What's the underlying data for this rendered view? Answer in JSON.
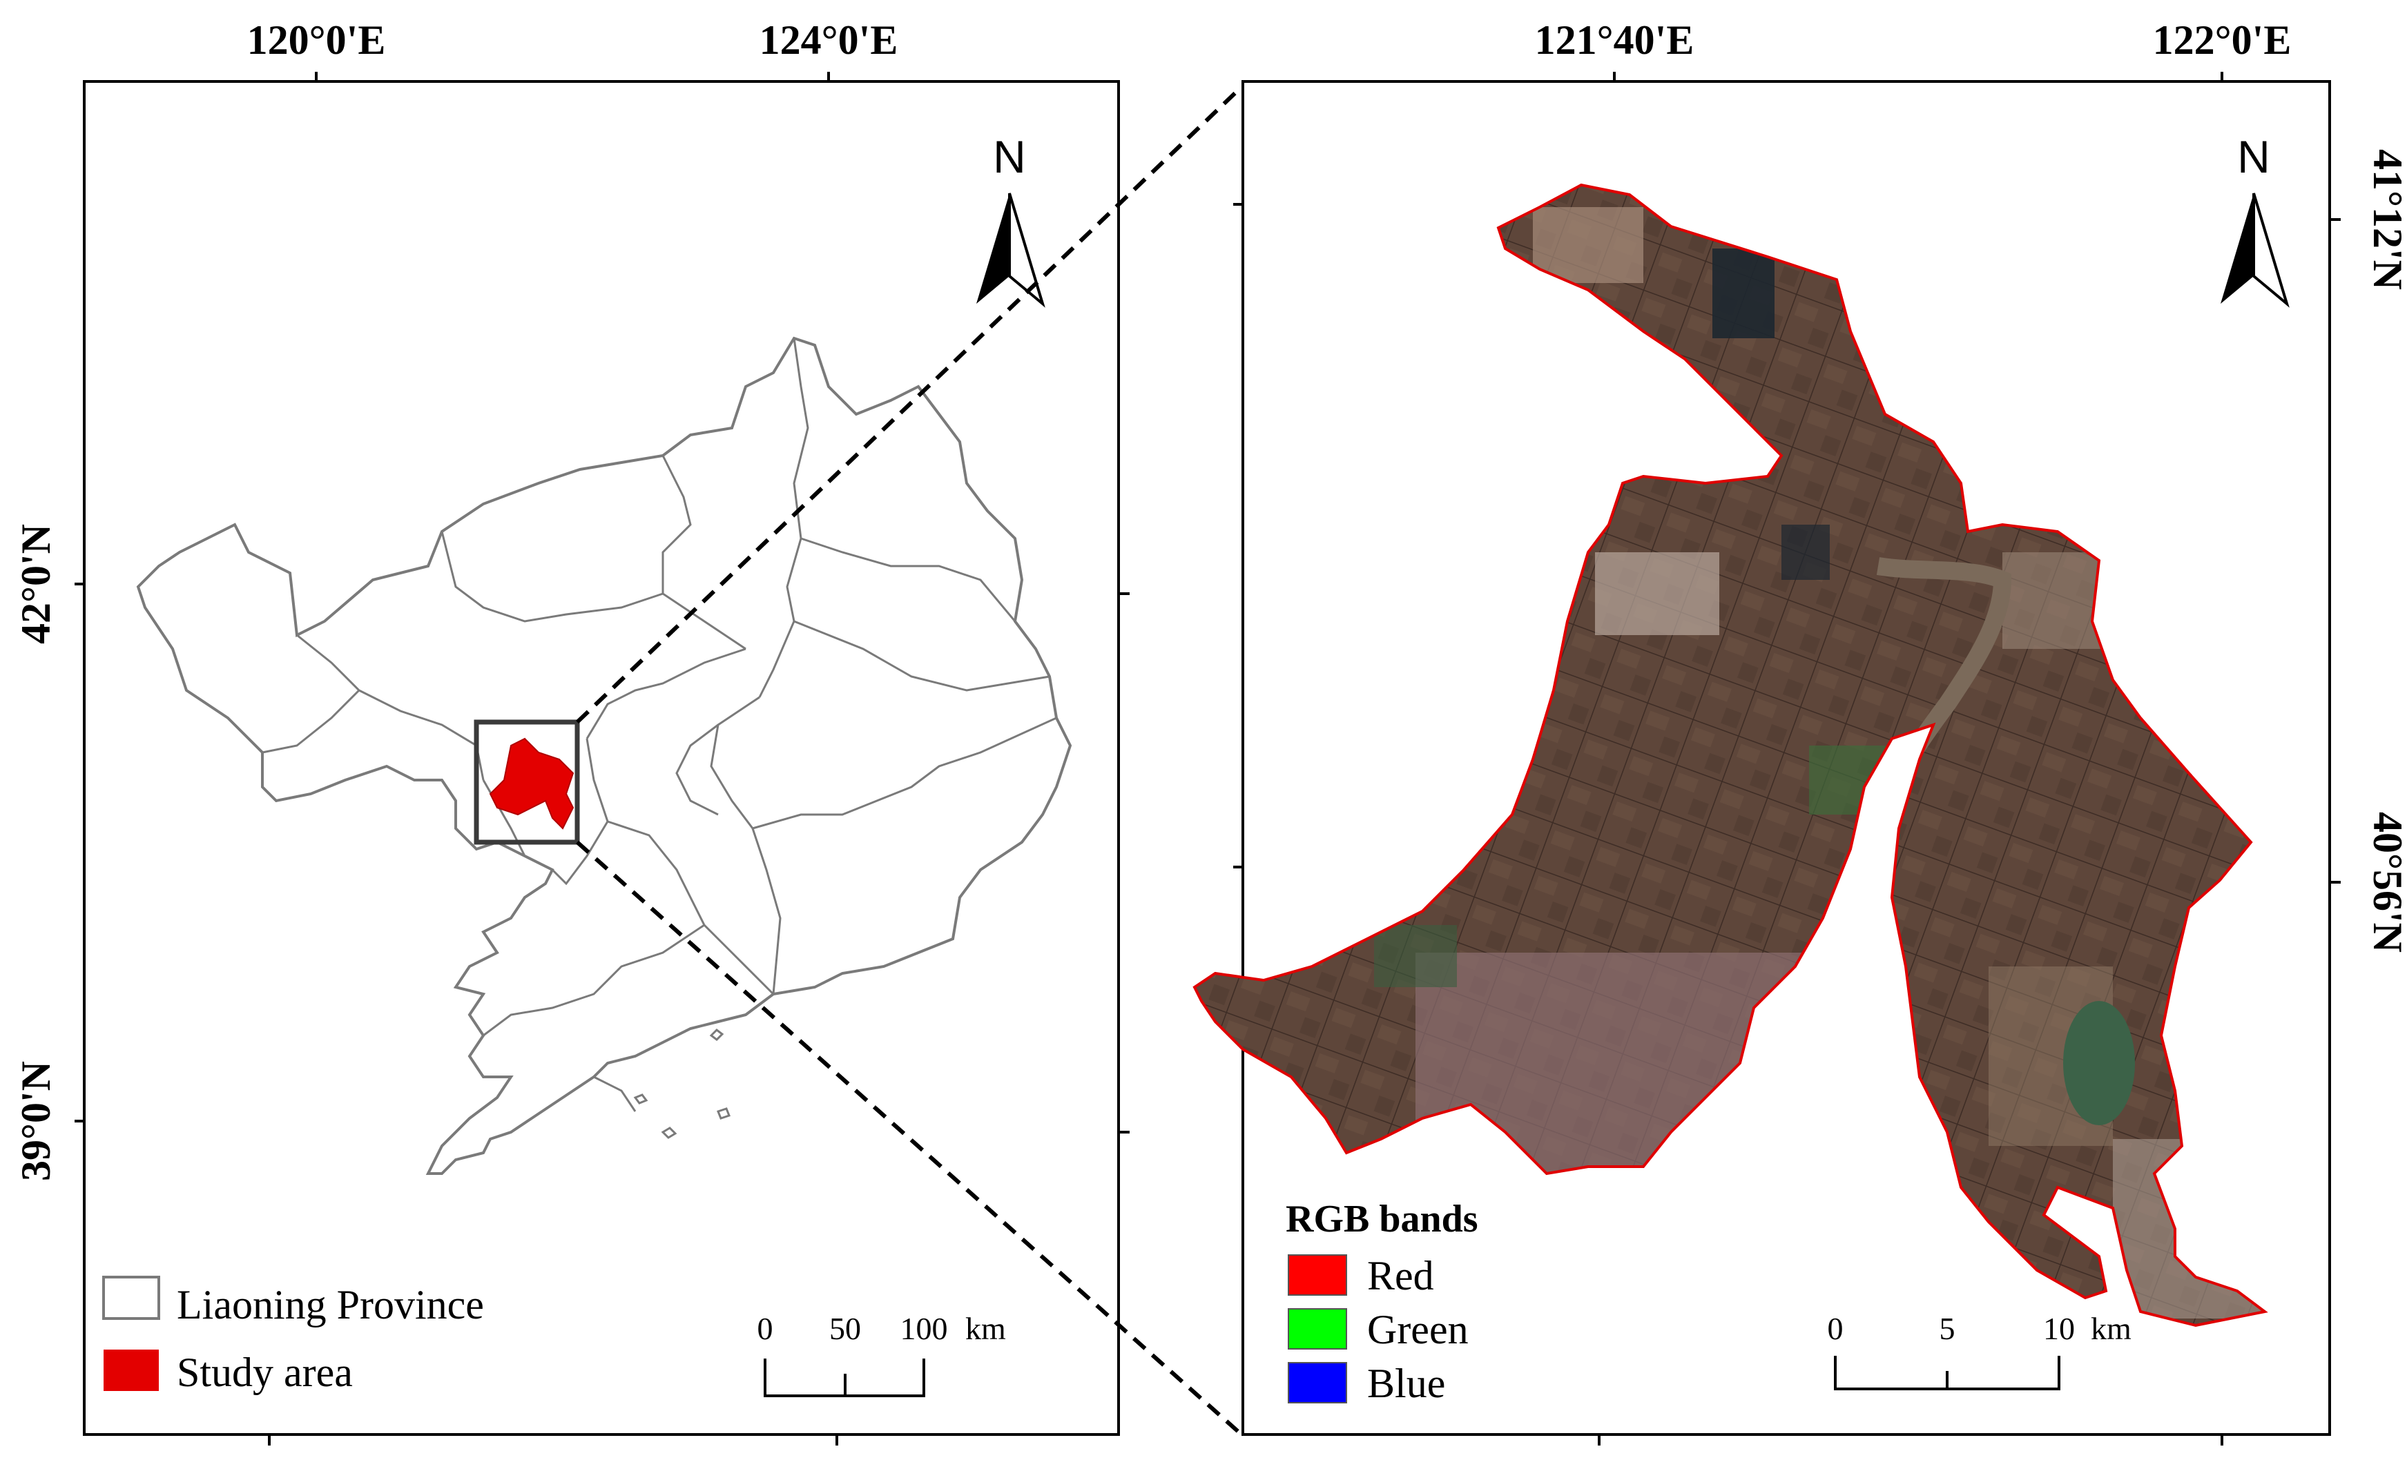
{
  "left_map": {
    "top_ticks": [
      "120°0'E",
      "124°0'E"
    ],
    "left_ticks": [
      "42°0'N",
      "39°0'N"
    ],
    "north_label": "N",
    "legend": [
      {
        "label": "Liaoning Province",
        "swatch": "#ffffff"
      },
      {
        "label": "Study area",
        "swatch": "#e30000"
      }
    ],
    "scale": {
      "labels": [
        "0",
        "50",
        "100"
      ],
      "unit": "km"
    }
  },
  "right_map": {
    "top_ticks": [
      "121°40'E",
      "122°0'E"
    ],
    "right_ticks": [
      "41°12'N",
      "40°56'N"
    ],
    "north_label": "N",
    "legend_title": "RGB bands",
    "legend": [
      {
        "label": "Red",
        "swatch": "#ff0000"
      },
      {
        "label": "Green",
        "swatch": "#00ff00"
      },
      {
        "label": "Blue",
        "swatch": "#0000ff"
      }
    ],
    "scale": {
      "labels": [
        "0",
        "5",
        "10"
      ],
      "unit": "km"
    }
  },
  "colors": {
    "province_outline": "#7a7a7a",
    "study_area": "#e30000",
    "satellite_base": "#5e463a",
    "study_boundary": "#e00000"
  }
}
